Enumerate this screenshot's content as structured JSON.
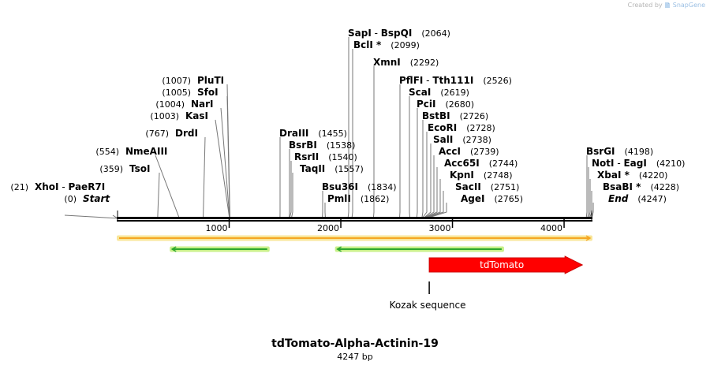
{
  "credit": {
    "prefix": "Created by",
    "brand": "SnapGene",
    "icon": "snapgene-logo-icon"
  },
  "title": "tdTomato-Alpha-Actinin-19",
  "length_label": "4247 bp",
  "sequence_length": 4247,
  "axis_ticks": [
    {
      "bp": 1000,
      "label": "1000"
    },
    {
      "bp": 2000,
      "label": "2000"
    },
    {
      "bp": 3000,
      "label": "3000"
    },
    {
      "bp": 4000,
      "label": "4000"
    }
  ],
  "sites_left": [
    {
      "pos": "(21)",
      "parts": [
        {
          "t": "XhoI",
          "b": true
        },
        {
          "t": " - "
        },
        {
          "t": "PaeR7I",
          "b": true
        }
      ],
      "bp": 21
    },
    {
      "pos": "(0)",
      "parts": [
        {
          "t": "Start",
          "b": true,
          "i": true
        }
      ],
      "bp": 0
    },
    {
      "pos": "(359)",
      "parts": [
        {
          "t": "TsoI",
          "b": true
        }
      ],
      "bp": 359
    },
    {
      "pos": "(554)",
      "parts": [
        {
          "t": "NmeAIII",
          "b": true
        }
      ],
      "bp": 554
    },
    {
      "pos": "(767)",
      "parts": [
        {
          "t": "DrdI",
          "b": true
        }
      ],
      "bp": 767
    },
    {
      "pos": "(1003)",
      "parts": [
        {
          "t": "KasI",
          "b": true
        }
      ],
      "bp": 1003
    },
    {
      "pos": "(1004)",
      "parts": [
        {
          "t": "NarI",
          "b": true
        }
      ],
      "bp": 1004
    },
    {
      "pos": "(1005)",
      "parts": [
        {
          "t": "SfoI",
          "b": true
        }
      ],
      "bp": 1005
    },
    {
      "pos": "(1007)",
      "parts": [
        {
          "t": "PluTI",
          "b": true
        }
      ],
      "bp": 1007
    }
  ],
  "sites_right": [
    {
      "pos": "(2064)",
      "parts": [
        {
          "t": "SapI",
          "b": true
        },
        {
          "t": " - "
        },
        {
          "t": "BspQI",
          "b": true
        }
      ],
      "bp": 2064
    },
    {
      "pos": "(2099)",
      "parts": [
        {
          "t": "BclI *",
          "b": true
        }
      ],
      "bp": 2099
    },
    {
      "pos": "(2292)",
      "parts": [
        {
          "t": "XmnI",
          "b": true
        }
      ],
      "bp": 2292
    },
    {
      "pos": "(2526)",
      "parts": [
        {
          "t": "PflFI",
          "b": true
        },
        {
          "t": " - "
        },
        {
          "t": "Tth111I",
          "b": true
        }
      ],
      "bp": 2526
    },
    {
      "pos": "(2619)",
      "parts": [
        {
          "t": "ScaI",
          "b": true
        }
      ],
      "bp": 2619
    },
    {
      "pos": "(2680)",
      "parts": [
        {
          "t": "PciI",
          "b": true
        }
      ],
      "bp": 2680
    },
    {
      "pos": "(2726)",
      "parts": [
        {
          "t": "BstBI",
          "b": true
        }
      ],
      "bp": 2726
    },
    {
      "pos": "(2728)",
      "parts": [
        {
          "t": "EcoRI",
          "b": true
        }
      ],
      "bp": 2728
    },
    {
      "pos": "(2738)",
      "parts": [
        {
          "t": "SalI",
          "b": true
        }
      ],
      "bp": 2738
    },
    {
      "pos": "(2739)",
      "parts": [
        {
          "t": "AccI",
          "b": true
        }
      ],
      "bp": 2739
    },
    {
      "pos": "(2744)",
      "parts": [
        {
          "t": "Acc65I",
          "b": true
        }
      ],
      "bp": 2744
    },
    {
      "pos": "(2748)",
      "parts": [
        {
          "t": "KpnI",
          "b": true
        }
      ],
      "bp": 2748
    },
    {
      "pos": "(2751)",
      "parts": [
        {
          "t": "SacII",
          "b": true
        }
      ],
      "bp": 2751
    },
    {
      "pos": "(2765)",
      "parts": [
        {
          "t": "AgeI",
          "b": true
        }
      ],
      "bp": 2765
    },
    {
      "pos": "(1455)",
      "parts": [
        {
          "t": "DraIII",
          "b": true
        }
      ],
      "bp": 1455
    },
    {
      "pos": "(1538)",
      "parts": [
        {
          "t": "BsrBI",
          "b": true
        }
      ],
      "bp": 1538
    },
    {
      "pos": "(1540)",
      "parts": [
        {
          "t": "RsrII",
          "b": true
        }
      ],
      "bp": 1540
    },
    {
      "pos": "(1557)",
      "parts": [
        {
          "t": "TaqII",
          "b": true
        }
      ],
      "bp": 1557
    },
    {
      "pos": "(1834)",
      "parts": [
        {
          "t": "Bsu36I",
          "b": true
        }
      ],
      "bp": 1834
    },
    {
      "pos": "(1862)",
      "parts": [
        {
          "t": "PmlI",
          "b": true
        }
      ],
      "bp": 1862
    },
    {
      "pos": "(4198)",
      "parts": [
        {
          "t": "BsrGI",
          "b": true
        }
      ],
      "bp": 4198
    },
    {
      "pos": "(4210)",
      "parts": [
        {
          "t": "NotI",
          "b": true
        },
        {
          "t": " - "
        },
        {
          "t": "EagI",
          "b": true
        }
      ],
      "bp": 4210
    },
    {
      "pos": "(4220)",
      "parts": [
        {
          "t": "XbaI *",
          "b": true
        }
      ],
      "bp": 4220
    },
    {
      "pos": "(4228)",
      "parts": [
        {
          "t": "BsaBI *",
          "b": true
        }
      ],
      "bp": 4228
    },
    {
      "pos": "(4247)",
      "parts": [
        {
          "t": "End",
          "b": true,
          "i": true
        }
      ],
      "bp": 4247
    }
  ],
  "features": [
    {
      "name": "tdTomato",
      "start_bp": 2792,
      "end_bp": 4220,
      "direction": "forward",
      "color": "#ff0000",
      "stroke": "#cc0000"
    }
  ],
  "orf_bars": [
    {
      "start_bp": 0,
      "end_bp": 4247,
      "direction": "forward",
      "color": "#f5a623",
      "halo": "#f8e69a"
    },
    {
      "start_bp": 475,
      "end_bp": 1355,
      "direction": "reverse",
      "color": "#2ea82e",
      "halo": "#c8f08a"
    },
    {
      "start_bp": 1955,
      "end_bp": 3455,
      "direction": "reverse",
      "color": "#2ea82e",
      "halo": "#c8f08a"
    }
  ],
  "primer_binding_sites": [
    {
      "label": "Kozak sequence",
      "bp": 2792
    }
  ]
}
